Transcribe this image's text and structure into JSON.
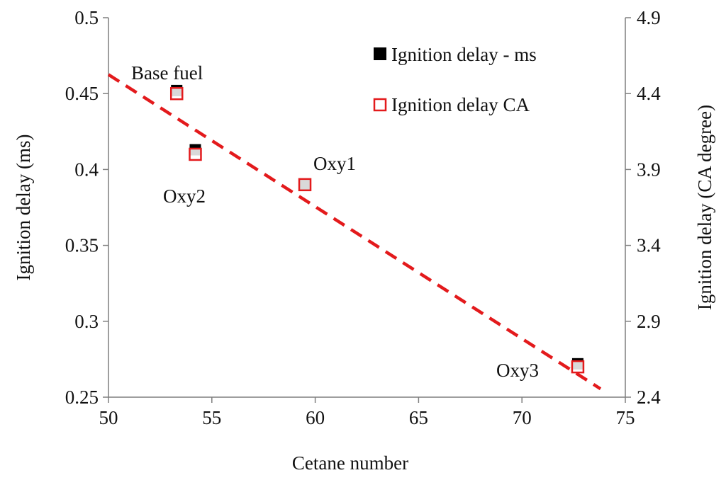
{
  "chart_data": {
    "type": "scatter",
    "title": "",
    "xlabel": "Cetane number",
    "ylabel": "Ignition delay (ms)",
    "y2label": "Ignition delay (CA degree)",
    "xlim": [
      50,
      75
    ],
    "ylim": [
      0.25,
      0.5
    ],
    "y2lim": [
      2.4,
      4.9
    ],
    "xticks": [
      50,
      55,
      60,
      65,
      70,
      75
    ],
    "xtick_labels": [
      "50",
      "55",
      "60",
      "65",
      "70",
      "75"
    ],
    "yticks": [
      0.25,
      0.3,
      0.35,
      0.4,
      0.45,
      0.5
    ],
    "ytick_labels": [
      "0.25",
      "0.3",
      "0.35",
      "0.4",
      "0.45",
      "0.5"
    ],
    "y2ticks": [
      2.4,
      2.9,
      3.4,
      3.9,
      4.4,
      4.9
    ],
    "y2tick_labels": [
      "2.4",
      "2.9",
      "3.4",
      "3.9",
      "4.4",
      "4.9"
    ],
    "legend_position": "top-right",
    "series": [
      {
        "name": "Ignition delay - ms",
        "axis": "left",
        "marker": "filled-square",
        "color": "#000000",
        "points": [
          {
            "label": "Base fuel",
            "x": 53.3,
            "y": 0.452
          },
          {
            "label": "Oxy2",
            "x": 54.2,
            "y": 0.413
          },
          {
            "label": "Oxy1",
            "x": 59.5,
            "y": 0.39
          },
          {
            "label": "Oxy3",
            "x": 72.7,
            "y": 0.272
          }
        ]
      },
      {
        "name": "Ignition delay CA",
        "axis": "right",
        "marker": "open-square",
        "color": "#e31a1c",
        "points": [
          {
            "label": "Base fuel",
            "x": 53.3,
            "y": 4.4
          },
          {
            "label": "Oxy2",
            "x": 54.2,
            "y": 4.0
          },
          {
            "label": "Oxy1",
            "x": 59.5,
            "y": 3.8
          },
          {
            "label": "Oxy3",
            "x": 72.7,
            "y": 2.6
          }
        ]
      }
    ],
    "trendline": {
      "style": "dashed",
      "color": "#e31a1c",
      "axis": "left",
      "x_start": 50,
      "y_start": 0.4625,
      "x_end": 73.8,
      "y_end": 0.2555
    },
    "point_labels": [
      "Base fuel",
      "Oxy2",
      "Oxy1",
      "Oxy3"
    ]
  }
}
